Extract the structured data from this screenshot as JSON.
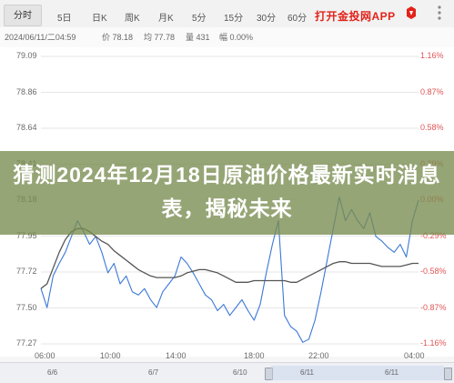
{
  "tabs": [
    {
      "label": "分时",
      "active": true
    },
    {
      "label": "5日",
      "active": false
    },
    {
      "label": "日K",
      "active": false
    },
    {
      "label": "周K",
      "active": false
    },
    {
      "label": "月K",
      "active": false
    },
    {
      "label": "5分",
      "active": false
    },
    {
      "label": "15分",
      "active": false
    },
    {
      "label": "30分",
      "active": false
    },
    {
      "label": "60分",
      "active": false
    }
  ],
  "promo_text": "打开金投网APP",
  "info_bar": {
    "datetime": "2024/06/11/二04:59",
    "price": "价 78.18",
    "avg": "均 77.78",
    "volume": "量 431",
    "change": "幅 0.00%"
  },
  "y_axis_left": [
    "79.09",
    "78.86",
    "78.64",
    "78.41",
    "78.18",
    "77.95",
    "77.72",
    "77.50",
    "77.27"
  ],
  "y_axis_right": [
    "1.16%",
    "0.87%",
    "0.58%",
    "0.29%",
    "0.00%",
    "-0.29%",
    "-0.58%",
    "-0.87%",
    "-1.16%"
  ],
  "x_axis": [
    "06:00",
    "10:00",
    "14:00",
    "18:00",
    "22:00",
    "04:00"
  ],
  "navigator": [
    "6/6",
    "6/7",
    "6/10",
    "6/11",
    "6/11"
  ],
  "banner_title": "猜测2024年12月18日原油价格最新实时消息表，揭秘未来",
  "colors": {
    "price_line": "#3a78d8",
    "avg_line": "#555555",
    "accent_red": "#e2231a",
    "banner": "#788c50"
  },
  "chart_data": {
    "type": "line",
    "ylim": [
      77.27,
      79.09
    ],
    "x_range": [
      "06:00",
      "04:00"
    ],
    "series": [
      {
        "values": [
          77.62,
          77.5,
          77.7,
          77.78,
          77.85,
          77.95,
          78.05,
          77.98,
          77.9,
          77.95,
          77.85,
          77.72,
          77.78,
          77.65,
          77.7,
          77.6,
          77.58,
          77.62,
          77.55,
          77.5,
          77.6,
          77.65,
          77.7,
          77.82,
          77.78,
          77.72,
          77.65,
          77.58,
          77.55,
          77.48,
          77.52,
          77.45,
          77.5,
          77.55,
          77.48,
          77.42,
          77.52,
          77.72,
          77.9,
          78.05,
          77.45,
          77.38,
          77.35,
          77.28,
          77.3,
          77.42,
          77.6,
          77.8,
          78.0,
          78.2,
          78.05,
          78.12,
          78.05,
          78.0,
          78.1,
          77.95,
          77.92,
          77.88,
          77.85,
          77.9,
          77.82,
          78.05,
          78.18
        ]
      },
      {
        "values": [
          77.62,
          77.65,
          77.75,
          77.85,
          77.93,
          77.98,
          78.0,
          78.0,
          77.98,
          77.95,
          77.92,
          77.9,
          77.86,
          77.83,
          77.8,
          77.77,
          77.74,
          77.72,
          77.7,
          77.69,
          77.69,
          77.69,
          77.69,
          77.7,
          77.72,
          77.73,
          77.74,
          77.74,
          77.73,
          77.72,
          77.7,
          77.68,
          77.66,
          77.66,
          77.66,
          77.67,
          77.67,
          77.67,
          77.67,
          77.67,
          77.67,
          77.66,
          77.66,
          77.68,
          77.7,
          77.72,
          77.74,
          77.76,
          77.78,
          77.79,
          77.79,
          77.78,
          77.78,
          77.78,
          77.78,
          77.77,
          77.76,
          77.76,
          77.76,
          77.76,
          77.77,
          77.78,
          77.78
        ]
      }
    ]
  }
}
